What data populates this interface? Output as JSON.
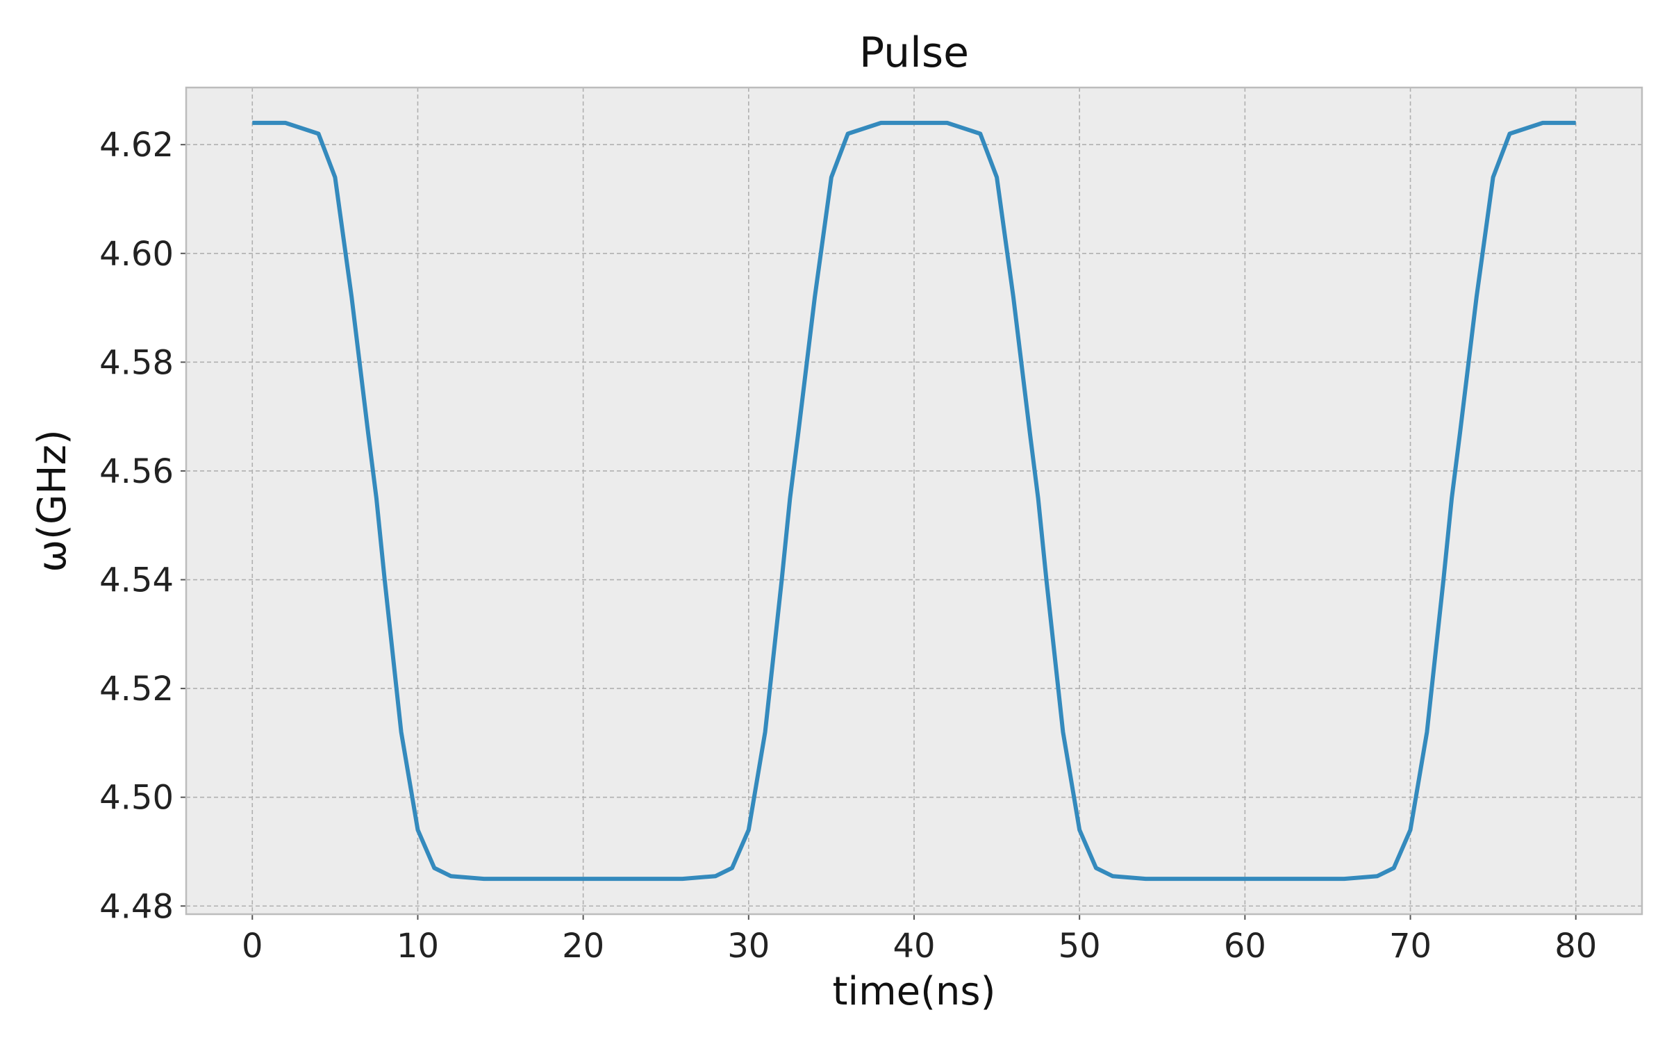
{
  "chart_data": {
    "type": "line",
    "title": "Pulse",
    "xlabel": "time(ns)",
    "ylabel": "ω(GHz)",
    "xlim": [
      -4,
      84
    ],
    "ylim": [
      4.4785,
      4.6305
    ],
    "xticks": [
      0,
      10,
      20,
      30,
      40,
      50,
      60,
      70,
      80
    ],
    "xtick_labels": [
      "0",
      "10",
      "20",
      "30",
      "40",
      "50",
      "60",
      "70",
      "80"
    ],
    "yticks": [
      4.48,
      4.5,
      4.52,
      4.54,
      4.56,
      4.58,
      4.6,
      4.62
    ],
    "ytick_labels": [
      "4.48",
      "4.50",
      "4.52",
      "4.54",
      "4.56",
      "4.58",
      "4.60",
      "4.62"
    ],
    "grid": true,
    "legend": "none",
    "colors": {
      "line": "#348abd",
      "plot_bg": "#ececec",
      "frame": "#bcbcbc"
    },
    "series": [
      {
        "x": [
          0,
          2,
          4,
          5,
          6,
          7,
          7.5,
          8,
          9,
          10,
          11,
          12,
          14,
          20,
          26,
          28,
          29,
          30,
          31,
          32,
          32.5,
          33,
          34,
          35,
          36,
          38,
          40,
          42,
          44,
          45,
          46,
          47,
          47.5,
          48,
          49,
          50,
          51,
          52,
          54,
          60,
          66,
          68,
          69,
          70,
          71,
          72,
          72.5,
          73,
          74,
          75,
          76,
          78,
          80
        ],
        "y": [
          4.624,
          4.624,
          4.622,
          4.614,
          4.592,
          4.567,
          4.555,
          4.54,
          4.512,
          4.494,
          4.487,
          4.4855,
          4.485,
          4.485,
          4.485,
          4.4855,
          4.487,
          4.494,
          4.512,
          4.54,
          4.555,
          4.567,
          4.592,
          4.614,
          4.622,
          4.624,
          4.624,
          4.624,
          4.622,
          4.614,
          4.592,
          4.567,
          4.555,
          4.54,
          4.512,
          4.494,
          4.487,
          4.4855,
          4.485,
          4.485,
          4.485,
          4.4855,
          4.487,
          4.494,
          4.512,
          4.54,
          4.555,
          4.567,
          4.592,
          4.614,
          4.622,
          4.624,
          4.624
        ]
      }
    ]
  }
}
